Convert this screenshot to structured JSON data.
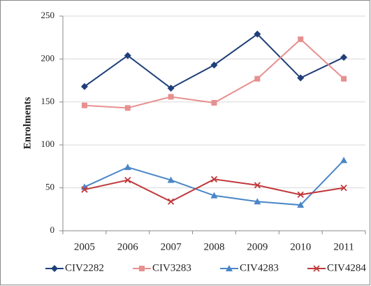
{
  "chart_data": {
    "type": "line",
    "y_label": "Enrolments",
    "categories": [
      "2005",
      "2006",
      "2007",
      "2008",
      "2009",
      "2010",
      "2011"
    ],
    "series": [
      {
        "name": "CIV2282",
        "color": "#1f3f7a",
        "marker": "diamond",
        "values": [
          168,
          204,
          166,
          193,
          229,
          178,
          202
        ]
      },
      {
        "name": "CIV3283",
        "color": "#e6908f",
        "marker": "square",
        "values": [
          146,
          143,
          156,
          149,
          177,
          223,
          177
        ]
      },
      {
        "name": "CIV4283",
        "color": "#4a86c6",
        "marker": "triangle",
        "values": [
          51,
          74,
          59,
          41,
          34,
          30,
          82
        ]
      },
      {
        "name": "CIV4284",
        "color": "#c0393b",
        "marker": "x",
        "values": [
          48,
          59,
          34,
          60,
          53,
          42,
          50
        ]
      }
    ],
    "ylim": [
      0,
      250
    ],
    "yticks": [
      0,
      50,
      100,
      150,
      200,
      250
    ],
    "grid": true,
    "legend": "bottom"
  }
}
